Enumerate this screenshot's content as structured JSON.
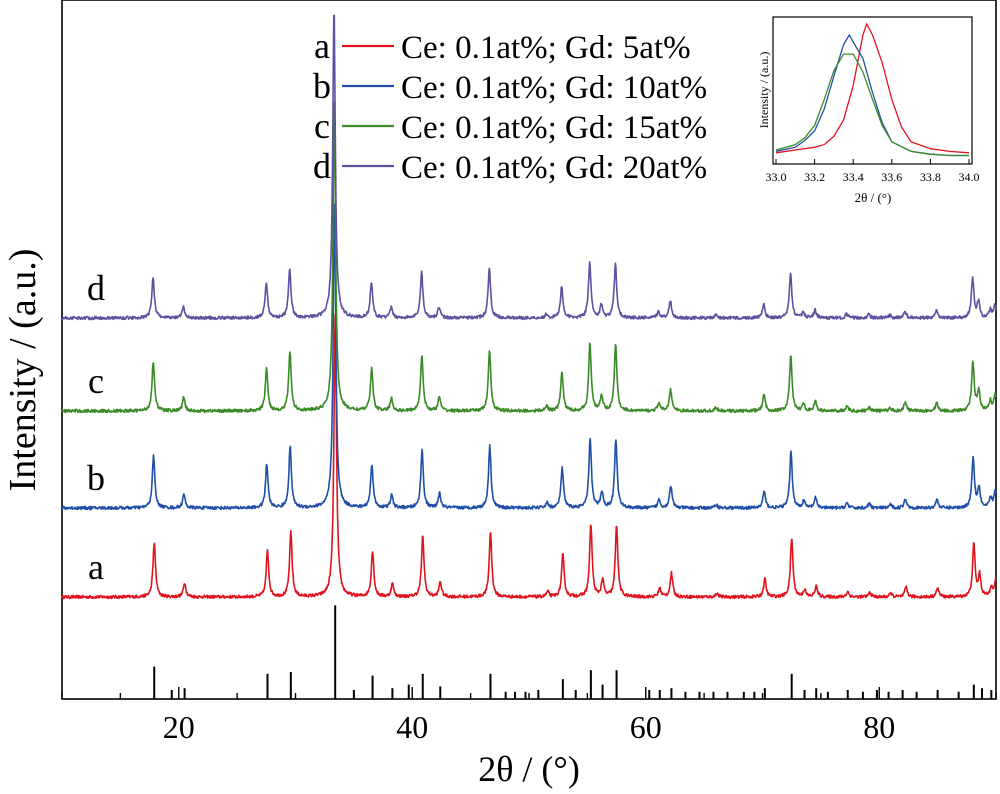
{
  "chart_data": {
    "type": "line",
    "xlabel": "2θ / (°)",
    "ylabel": "Intensity / (a.u.)",
    "xlim": [
      10,
      90
    ],
    "xticks": [
      20,
      40,
      60,
      80
    ],
    "series": [
      {
        "label": "a",
        "name": "Ce: 0.1at%; Gd: 5at%",
        "color": "#e0141e",
        "baseline": 597,
        "scale": 1.0,
        "shift": 0.0
      },
      {
        "label": "b",
        "name": "Ce: 0.1at%; Gd: 10at%",
        "color": "#1f4fa8",
        "baseline": 508,
        "scale": 0.95,
        "shift": -0.06
      },
      {
        "label": "c",
        "name": "Ce: 0.1at%; Gd: 15at%",
        "color": "#3a8a28",
        "baseline": 411,
        "scale": 0.92,
        "shift": -0.08
      },
      {
        "label": "d",
        "name": "Ce: 0.1at%; Gd: 20at%",
        "color": "#6050a0",
        "baseline": 318,
        "scale": 0.75,
        "shift": -0.1
      }
    ],
    "peaks": [
      {
        "x": 17.9,
        "h": 0.62
      },
      {
        "x": 20.5,
        "h": 0.16
      },
      {
        "x": 27.6,
        "h": 0.52
      },
      {
        "x": 29.6,
        "h": 0.73
      },
      {
        "x": 33.4,
        "h": 3.2
      },
      {
        "x": 36.6,
        "h": 0.52
      },
      {
        "x": 38.3,
        "h": 0.15
      },
      {
        "x": 40.9,
        "h": 0.69
      },
      {
        "x": 42.4,
        "h": 0.17
      },
      {
        "x": 46.7,
        "h": 0.74
      },
      {
        "x": 51.6,
        "h": 0.06
      },
      {
        "x": 52.9,
        "h": 0.48
      },
      {
        "x": 55.3,
        "h": 0.83
      },
      {
        "x": 56.3,
        "h": 0.19
      },
      {
        "x": 57.5,
        "h": 0.82
      },
      {
        "x": 61.2,
        "h": 0.1
      },
      {
        "x": 62.2,
        "h": 0.27
      },
      {
        "x": 66.1,
        "h": 0.04
      },
      {
        "x": 70.2,
        "h": 0.2
      },
      {
        "x": 72.5,
        "h": 0.67
      },
      {
        "x": 73.6,
        "h": 0.08
      },
      {
        "x": 74.6,
        "h": 0.12
      },
      {
        "x": 77.3,
        "h": 0.06
      },
      {
        "x": 79.2,
        "h": 0.05
      },
      {
        "x": 81.0,
        "h": 0.04
      },
      {
        "x": 82.3,
        "h": 0.11
      },
      {
        "x": 85.0,
        "h": 0.1
      },
      {
        "x": 88.1,
        "h": 0.6
      },
      {
        "x": 88.6,
        "h": 0.24
      },
      {
        "x": 89.6,
        "h": 0.12
      },
      {
        "x": 90.0,
        "h": 0.2
      }
    ],
    "reference_sticks": [
      {
        "x": 17.9,
        "h": 0.18
      },
      {
        "x": 19.4,
        "h": 0.05
      },
      {
        "x": 20.5,
        "h": 0.06
      },
      {
        "x": 27.6,
        "h": 0.14
      },
      {
        "x": 29.6,
        "h": 0.15
      },
      {
        "x": 33.4,
        "h": 0.52
      },
      {
        "x": 35.0,
        "h": 0.05
      },
      {
        "x": 36.6,
        "h": 0.13
      },
      {
        "x": 38.3,
        "h": 0.06
      },
      {
        "x": 39.7,
        "h": 0.08
      },
      {
        "x": 40.9,
        "h": 0.14
      },
      {
        "x": 42.4,
        "h": 0.07
      },
      {
        "x": 46.7,
        "h": 0.14
      },
      {
        "x": 48.0,
        "h": 0.04
      },
      {
        "x": 48.8,
        "h": 0.04
      },
      {
        "x": 49.7,
        "h": 0.04
      },
      {
        "x": 50.8,
        "h": 0.05
      },
      {
        "x": 52.9,
        "h": 0.11
      },
      {
        "x": 54.0,
        "h": 0.05
      },
      {
        "x": 55.3,
        "h": 0.16
      },
      {
        "x": 56.3,
        "h": 0.08
      },
      {
        "x": 57.5,
        "h": 0.16
      },
      {
        "x": 60.3,
        "h": 0.05
      },
      {
        "x": 61.2,
        "h": 0.05
      },
      {
        "x": 62.2,
        "h": 0.06
      },
      {
        "x": 63.4,
        "h": 0.04
      },
      {
        "x": 64.6,
        "h": 0.04
      },
      {
        "x": 65.8,
        "h": 0.04
      },
      {
        "x": 67.0,
        "h": 0.04
      },
      {
        "x": 68.4,
        "h": 0.04
      },
      {
        "x": 69.3,
        "h": 0.04
      },
      {
        "x": 70.2,
        "h": 0.06
      },
      {
        "x": 72.5,
        "h": 0.14
      },
      {
        "x": 73.6,
        "h": 0.05
      },
      {
        "x": 74.6,
        "h": 0.06
      },
      {
        "x": 75.6,
        "h": 0.04
      },
      {
        "x": 77.3,
        "h": 0.05
      },
      {
        "x": 78.6,
        "h": 0.04
      },
      {
        "x": 79.8,
        "h": 0.05
      },
      {
        "x": 80.8,
        "h": 0.04
      },
      {
        "x": 82.0,
        "h": 0.05
      },
      {
        "x": 83.2,
        "h": 0.04
      },
      {
        "x": 85.0,
        "h": 0.05
      },
      {
        "x": 86.8,
        "h": 0.04
      },
      {
        "x": 88.1,
        "h": 0.08
      },
      {
        "x": 88.8,
        "h": 0.06
      },
      {
        "x": 89.6,
        "h": 0.05
      }
    ],
    "inset": {
      "xlabel": "2θ / (°)",
      "ylabel": "Intensity / (a.u.)",
      "xlim": [
        33.0,
        34.0
      ],
      "xticks": [
        "33.0",
        "33.2",
        "33.4",
        "33.6",
        "33.8",
        "34.0"
      ],
      "series": [
        {
          "color": "#e0141e",
          "points": [
            [
              33.0,
              0.06
            ],
            [
              33.1,
              0.08
            ],
            [
              33.2,
              0.1
            ],
            [
              33.25,
              0.12
            ],
            [
              33.3,
              0.18
            ],
            [
              33.35,
              0.3
            ],
            [
              33.4,
              0.55
            ],
            [
              33.45,
              0.92
            ],
            [
              33.47,
              1.0
            ],
            [
              33.5,
              0.92
            ],
            [
              33.55,
              0.72
            ],
            [
              33.6,
              0.45
            ],
            [
              33.65,
              0.25
            ],
            [
              33.7,
              0.14
            ],
            [
              33.8,
              0.09
            ],
            [
              33.9,
              0.07
            ],
            [
              34.0,
              0.06
            ]
          ]
        },
        {
          "color": "#1f4fa8",
          "points": [
            [
              33.0,
              0.07
            ],
            [
              33.1,
              0.1
            ],
            [
              33.15,
              0.15
            ],
            [
              33.2,
              0.22
            ],
            [
              33.25,
              0.38
            ],
            [
              33.3,
              0.62
            ],
            [
              33.35,
              0.85
            ],
            [
              33.38,
              0.92
            ],
            [
              33.42,
              0.82
            ],
            [
              33.45,
              0.75
            ],
            [
              33.5,
              0.5
            ],
            [
              33.55,
              0.28
            ],
            [
              33.6,
              0.14
            ],
            [
              33.7,
              0.07
            ],
            [
              33.8,
              0.05
            ],
            [
              33.9,
              0.04
            ],
            [
              34.0,
              0.04
            ]
          ]
        },
        {
          "color": "#3a8a28",
          "points": [
            [
              33.0,
              0.08
            ],
            [
              33.1,
              0.12
            ],
            [
              33.15,
              0.17
            ],
            [
              33.2,
              0.26
            ],
            [
              33.25,
              0.45
            ],
            [
              33.3,
              0.66
            ],
            [
              33.35,
              0.78
            ],
            [
              33.4,
              0.78
            ],
            [
              33.45,
              0.65
            ],
            [
              33.5,
              0.45
            ],
            [
              33.55,
              0.26
            ],
            [
              33.6,
              0.14
            ],
            [
              33.7,
              0.07
            ],
            [
              33.8,
              0.05
            ],
            [
              33.9,
              0.04
            ],
            [
              34.0,
              0.04
            ]
          ]
        }
      ]
    }
  }
}
